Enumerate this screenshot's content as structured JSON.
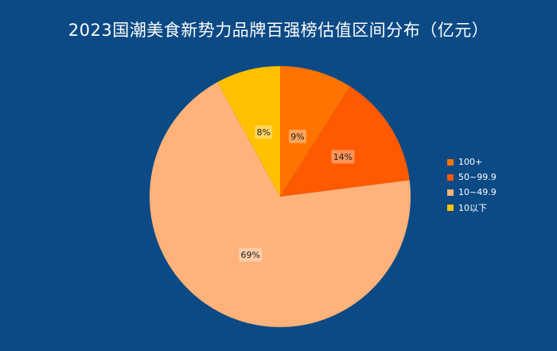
{
  "chart_data": {
    "type": "pie",
    "title": "2023国潮美食新势力品牌百强榜估值区间分布（亿元）",
    "slices": [
      {
        "label": "100+",
        "value": 9,
        "display": "9%",
        "color": "#ff7300"
      },
      {
        "label": "50~99.9",
        "value": 14,
        "display": "14%",
        "color": "#ff5a00"
      },
      {
        "label": "10~49.9",
        "value": 69,
        "display": "69%",
        "color": "#ffb27a"
      },
      {
        "label": "10以下",
        "value": 8,
        "display": "8%",
        "color": "#ffc000"
      }
    ],
    "legend_position": "right",
    "background_color": "#0b4a85"
  }
}
